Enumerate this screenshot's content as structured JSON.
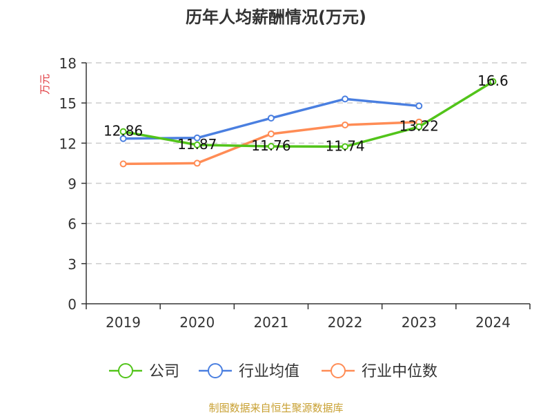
{
  "chart_data": {
    "type": "line",
    "title": "历年人均薪酬情况(万元)",
    "ylabel": "万元",
    "categories": [
      "2019",
      "2020",
      "2021",
      "2022",
      "2023",
      "2024"
    ],
    "ylim": [
      0,
      18
    ],
    "yticks": [
      0,
      3,
      6,
      9,
      12,
      15,
      18
    ],
    "grid": true,
    "legend_position": "bottom",
    "series": [
      {
        "name": "公司",
        "color": "#52c41a",
        "values": [
          12.86,
          11.87,
          11.76,
          11.74,
          13.22,
          16.6
        ],
        "labels": [
          "12.86",
          "11.87",
          "11.76",
          "11.74",
          "13.22",
          "16.6"
        ]
      },
      {
        "name": "行业均值",
        "color": "#4a7fe0",
        "values": [
          12.34,
          12.39,
          13.87,
          15.3,
          14.78,
          null
        ]
      },
      {
        "name": "行业中位数",
        "color": "#ff8c55",
        "values": [
          10.45,
          10.5,
          12.69,
          13.36,
          13.58,
          null
        ]
      }
    ]
  },
  "source": "制图数据来自恒生聚源数据库"
}
